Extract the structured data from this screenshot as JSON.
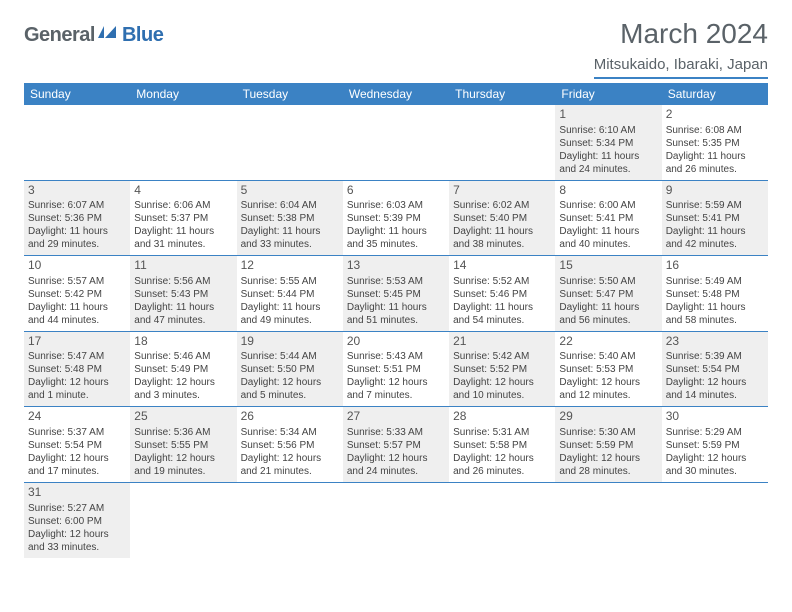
{
  "logo": {
    "part1": "General",
    "part2": "Blue"
  },
  "title": "March 2024",
  "location": "Mitsukaido, Ibaraki, Japan",
  "colors": {
    "header_bg": "#3b82c4",
    "header_text": "#ffffff",
    "shaded_bg": "#efefef",
    "border": "#3b82c4",
    "title_color": "#5a6268",
    "logo_gray": "#5a6268",
    "logo_blue": "#2f6fb0"
  },
  "weekdays": [
    "Sunday",
    "Monday",
    "Tuesday",
    "Wednesday",
    "Thursday",
    "Friday",
    "Saturday"
  ],
  "weeks": [
    [
      {
        "empty": true,
        "shaded": false
      },
      {
        "empty": true,
        "shaded": false
      },
      {
        "empty": true,
        "shaded": false
      },
      {
        "empty": true,
        "shaded": false
      },
      {
        "empty": true,
        "shaded": false
      },
      {
        "num": "1",
        "shaded": true,
        "sunrise": "Sunrise: 6:10 AM",
        "sunset": "Sunset: 5:34 PM",
        "daylight1": "Daylight: 11 hours",
        "daylight2": "and 24 minutes."
      },
      {
        "num": "2",
        "shaded": false,
        "sunrise": "Sunrise: 6:08 AM",
        "sunset": "Sunset: 5:35 PM",
        "daylight1": "Daylight: 11 hours",
        "daylight2": "and 26 minutes."
      }
    ],
    [
      {
        "num": "3",
        "shaded": true,
        "sunrise": "Sunrise: 6:07 AM",
        "sunset": "Sunset: 5:36 PM",
        "daylight1": "Daylight: 11 hours",
        "daylight2": "and 29 minutes."
      },
      {
        "num": "4",
        "shaded": false,
        "sunrise": "Sunrise: 6:06 AM",
        "sunset": "Sunset: 5:37 PM",
        "daylight1": "Daylight: 11 hours",
        "daylight2": "and 31 minutes."
      },
      {
        "num": "5",
        "shaded": true,
        "sunrise": "Sunrise: 6:04 AM",
        "sunset": "Sunset: 5:38 PM",
        "daylight1": "Daylight: 11 hours",
        "daylight2": "and 33 minutes."
      },
      {
        "num": "6",
        "shaded": false,
        "sunrise": "Sunrise: 6:03 AM",
        "sunset": "Sunset: 5:39 PM",
        "daylight1": "Daylight: 11 hours",
        "daylight2": "and 35 minutes."
      },
      {
        "num": "7",
        "shaded": true,
        "sunrise": "Sunrise: 6:02 AM",
        "sunset": "Sunset: 5:40 PM",
        "daylight1": "Daylight: 11 hours",
        "daylight2": "and 38 minutes."
      },
      {
        "num": "8",
        "shaded": false,
        "sunrise": "Sunrise: 6:00 AM",
        "sunset": "Sunset: 5:41 PM",
        "daylight1": "Daylight: 11 hours",
        "daylight2": "and 40 minutes."
      },
      {
        "num": "9",
        "shaded": true,
        "sunrise": "Sunrise: 5:59 AM",
        "sunset": "Sunset: 5:41 PM",
        "daylight1": "Daylight: 11 hours",
        "daylight2": "and 42 minutes."
      }
    ],
    [
      {
        "num": "10",
        "shaded": false,
        "sunrise": "Sunrise: 5:57 AM",
        "sunset": "Sunset: 5:42 PM",
        "daylight1": "Daylight: 11 hours",
        "daylight2": "and 44 minutes."
      },
      {
        "num": "11",
        "shaded": true,
        "sunrise": "Sunrise: 5:56 AM",
        "sunset": "Sunset: 5:43 PM",
        "daylight1": "Daylight: 11 hours",
        "daylight2": "and 47 minutes."
      },
      {
        "num": "12",
        "shaded": false,
        "sunrise": "Sunrise: 5:55 AM",
        "sunset": "Sunset: 5:44 PM",
        "daylight1": "Daylight: 11 hours",
        "daylight2": "and 49 minutes."
      },
      {
        "num": "13",
        "shaded": true,
        "sunrise": "Sunrise: 5:53 AM",
        "sunset": "Sunset: 5:45 PM",
        "daylight1": "Daylight: 11 hours",
        "daylight2": "and 51 minutes."
      },
      {
        "num": "14",
        "shaded": false,
        "sunrise": "Sunrise: 5:52 AM",
        "sunset": "Sunset: 5:46 PM",
        "daylight1": "Daylight: 11 hours",
        "daylight2": "and 54 minutes."
      },
      {
        "num": "15",
        "shaded": true,
        "sunrise": "Sunrise: 5:50 AM",
        "sunset": "Sunset: 5:47 PM",
        "daylight1": "Daylight: 11 hours",
        "daylight2": "and 56 minutes."
      },
      {
        "num": "16",
        "shaded": false,
        "sunrise": "Sunrise: 5:49 AM",
        "sunset": "Sunset: 5:48 PM",
        "daylight1": "Daylight: 11 hours",
        "daylight2": "and 58 minutes."
      }
    ],
    [
      {
        "num": "17",
        "shaded": true,
        "sunrise": "Sunrise: 5:47 AM",
        "sunset": "Sunset: 5:48 PM",
        "daylight1": "Daylight: 12 hours",
        "daylight2": "and 1 minute."
      },
      {
        "num": "18",
        "shaded": false,
        "sunrise": "Sunrise: 5:46 AM",
        "sunset": "Sunset: 5:49 PM",
        "daylight1": "Daylight: 12 hours",
        "daylight2": "and 3 minutes."
      },
      {
        "num": "19",
        "shaded": true,
        "sunrise": "Sunrise: 5:44 AM",
        "sunset": "Sunset: 5:50 PM",
        "daylight1": "Daylight: 12 hours",
        "daylight2": "and 5 minutes."
      },
      {
        "num": "20",
        "shaded": false,
        "sunrise": "Sunrise: 5:43 AM",
        "sunset": "Sunset: 5:51 PM",
        "daylight1": "Daylight: 12 hours",
        "daylight2": "and 7 minutes."
      },
      {
        "num": "21",
        "shaded": true,
        "sunrise": "Sunrise: 5:42 AM",
        "sunset": "Sunset: 5:52 PM",
        "daylight1": "Daylight: 12 hours",
        "daylight2": "and 10 minutes."
      },
      {
        "num": "22",
        "shaded": false,
        "sunrise": "Sunrise: 5:40 AM",
        "sunset": "Sunset: 5:53 PM",
        "daylight1": "Daylight: 12 hours",
        "daylight2": "and 12 minutes."
      },
      {
        "num": "23",
        "shaded": true,
        "sunrise": "Sunrise: 5:39 AM",
        "sunset": "Sunset: 5:54 PM",
        "daylight1": "Daylight: 12 hours",
        "daylight2": "and 14 minutes."
      }
    ],
    [
      {
        "num": "24",
        "shaded": false,
        "sunrise": "Sunrise: 5:37 AM",
        "sunset": "Sunset: 5:54 PM",
        "daylight1": "Daylight: 12 hours",
        "daylight2": "and 17 minutes."
      },
      {
        "num": "25",
        "shaded": true,
        "sunrise": "Sunrise: 5:36 AM",
        "sunset": "Sunset: 5:55 PM",
        "daylight1": "Daylight: 12 hours",
        "daylight2": "and 19 minutes."
      },
      {
        "num": "26",
        "shaded": false,
        "sunrise": "Sunrise: 5:34 AM",
        "sunset": "Sunset: 5:56 PM",
        "daylight1": "Daylight: 12 hours",
        "daylight2": "and 21 minutes."
      },
      {
        "num": "27",
        "shaded": true,
        "sunrise": "Sunrise: 5:33 AM",
        "sunset": "Sunset: 5:57 PM",
        "daylight1": "Daylight: 12 hours",
        "daylight2": "and 24 minutes."
      },
      {
        "num": "28",
        "shaded": false,
        "sunrise": "Sunrise: 5:31 AM",
        "sunset": "Sunset: 5:58 PM",
        "daylight1": "Daylight: 12 hours",
        "daylight2": "and 26 minutes."
      },
      {
        "num": "29",
        "shaded": true,
        "sunrise": "Sunrise: 5:30 AM",
        "sunset": "Sunset: 5:59 PM",
        "daylight1": "Daylight: 12 hours",
        "daylight2": "and 28 minutes."
      },
      {
        "num": "30",
        "shaded": false,
        "sunrise": "Sunrise: 5:29 AM",
        "sunset": "Sunset: 5:59 PM",
        "daylight1": "Daylight: 12 hours",
        "daylight2": "and 30 minutes."
      }
    ],
    [
      {
        "num": "31",
        "shaded": true,
        "sunrise": "Sunrise: 5:27 AM",
        "sunset": "Sunset: 6:00 PM",
        "daylight1": "Daylight: 12 hours",
        "daylight2": "and 33 minutes."
      },
      {
        "empty": true,
        "shaded": false
      },
      {
        "empty": true,
        "shaded": false
      },
      {
        "empty": true,
        "shaded": false
      },
      {
        "empty": true,
        "shaded": false
      },
      {
        "empty": true,
        "shaded": false
      },
      {
        "empty": true,
        "shaded": false
      }
    ]
  ]
}
